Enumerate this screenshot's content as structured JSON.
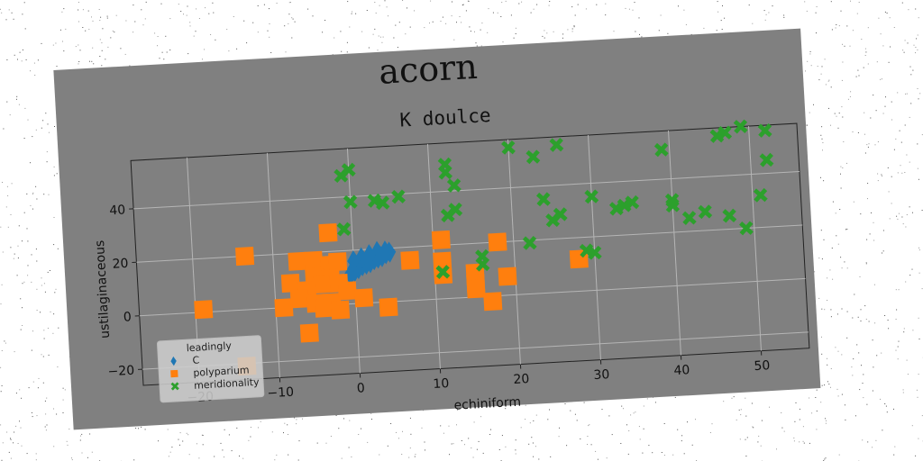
{
  "figure": {
    "suptitle": "acorn",
    "background": "#808080",
    "page_background": "#ffffff"
  },
  "chart_data": {
    "type": "scatter",
    "title": "K doulce",
    "xlabel": "echiniform",
    "ylabel": "ustilaginaceous",
    "xlim": [
      -27,
      56
    ],
    "ylim": [
      -26,
      58
    ],
    "xticks": [
      -20,
      -10,
      0,
      10,
      20,
      30,
      40,
      50
    ],
    "yticks": [
      -20,
      0,
      20,
      40
    ],
    "grid": true,
    "legend": {
      "title": "leadingly",
      "placement": "lower-left"
    },
    "series": [
      {
        "name": "C",
        "marker": "diamond",
        "color": "#1f77b4",
        "points": [
          [
            -0.5,
            11
          ],
          [
            0,
            12
          ],
          [
            0.5,
            13
          ],
          [
            1,
            14
          ],
          [
            1.5,
            14.5
          ],
          [
            2,
            15
          ],
          [
            2.5,
            16
          ],
          [
            3,
            16.5
          ],
          [
            3.5,
            17
          ],
          [
            4,
            18
          ],
          [
            4.5,
            18.5
          ],
          [
            4,
            19
          ],
          [
            3,
            19
          ],
          [
            2,
            18
          ],
          [
            1,
            17
          ],
          [
            0,
            16
          ]
        ]
      },
      {
        "name": "polyparium",
        "marker": "square",
        "color": "#ff7f0e",
        "points": [
          [
            -13.5,
            20
          ],
          [
            -19,
            1
          ],
          [
            -14,
            -21
          ],
          [
            -3,
            27
          ],
          [
            -7,
            17
          ],
          [
            -5,
            17
          ],
          [
            -3,
            15
          ],
          [
            -2,
            16
          ],
          [
            -8,
            9
          ],
          [
            -5,
            11
          ],
          [
            -3,
            10
          ],
          [
            -4,
            8
          ],
          [
            -6,
            6
          ],
          [
            -2,
            8
          ],
          [
            -7,
            3
          ],
          [
            -9,
            0
          ],
          [
            -5,
            1
          ],
          [
            -3,
            1
          ],
          [
            -4,
            -1
          ],
          [
            -2,
            -2
          ],
          [
            -1,
            5
          ],
          [
            -6,
            -10
          ],
          [
            1,
            2
          ],
          [
            4,
            -2
          ],
          [
            7,
            15
          ],
          [
            11,
            22
          ],
          [
            11,
            14
          ],
          [
            11,
            9
          ],
          [
            15,
            9
          ],
          [
            15,
            5
          ],
          [
            15,
            3
          ],
          [
            18,
            20
          ],
          [
            19,
            7
          ],
          [
            17,
            -2
          ],
          [
            28,
            12
          ]
        ]
      },
      {
        "name": "meridionality",
        "marker": "x",
        "color": "#2ca02c",
        "points": [
          [
            -1,
            48
          ],
          [
            0,
            50
          ],
          [
            0,
            38
          ],
          [
            -1,
            28
          ],
          [
            3,
            38
          ],
          [
            4,
            37
          ],
          [
            6,
            39
          ],
          [
            12,
            50
          ],
          [
            12,
            47
          ],
          [
            13,
            42
          ],
          [
            12,
            31
          ],
          [
            13,
            33
          ],
          [
            20,
            55
          ],
          [
            23,
            51
          ],
          [
            26,
            55
          ],
          [
            11,
            10
          ],
          [
            16,
            12
          ],
          [
            16,
            15
          ],
          [
            22,
            19
          ],
          [
            24,
            35
          ],
          [
            25,
            27
          ],
          [
            26,
            29
          ],
          [
            29,
            15
          ],
          [
            30,
            14
          ],
          [
            30,
            35
          ],
          [
            33,
            30
          ],
          [
            34,
            31
          ],
          [
            35,
            32
          ],
          [
            39,
            51
          ],
          [
            40,
            32
          ],
          [
            40,
            30
          ],
          [
            42,
            25
          ],
          [
            44,
            27
          ],
          [
            46,
            55
          ],
          [
            47,
            56
          ],
          [
            49,
            58
          ],
          [
            52,
            56
          ],
          [
            52,
            45
          ],
          [
            51,
            32
          ],
          [
            47,
            25
          ],
          [
            49,
            20
          ]
        ]
      }
    ]
  }
}
